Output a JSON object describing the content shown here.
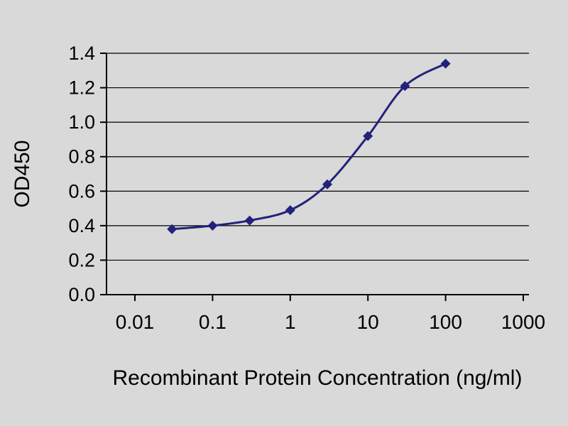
{
  "chart_data": {
    "type": "line",
    "title": "",
    "xlabel": "Recombinant Protein Concentration (ng/ml)",
    "ylabel": "OD450",
    "x_scale": "log",
    "x": [
      0.03,
      0.1,
      0.3,
      1,
      3,
      10,
      30,
      100
    ],
    "y": [
      0.38,
      0.4,
      0.43,
      0.49,
      0.64,
      0.92,
      1.21,
      1.34
    ],
    "x_tick_labels": [
      "0.01",
      "0.1",
      "1",
      "10",
      "100",
      "1000"
    ],
    "x_tick_values": [
      0.01,
      0.1,
      1,
      10,
      100,
      1000
    ],
    "y_tick_labels": [
      "0.0",
      "0.2",
      "0.4",
      "0.6",
      "0.8",
      "1.0",
      "1.2",
      "1.4"
    ],
    "y_tick_values": [
      0,
      0.2,
      0.4,
      0.6,
      0.8,
      1.0,
      1.2,
      1.4
    ],
    "ylim": [
      0,
      1.4
    ],
    "grid": "horizontal",
    "legend": "none",
    "marker": "diamond",
    "series_color": "#22227c",
    "axis_color": "#000000",
    "background_color": "#d9d9d9"
  }
}
